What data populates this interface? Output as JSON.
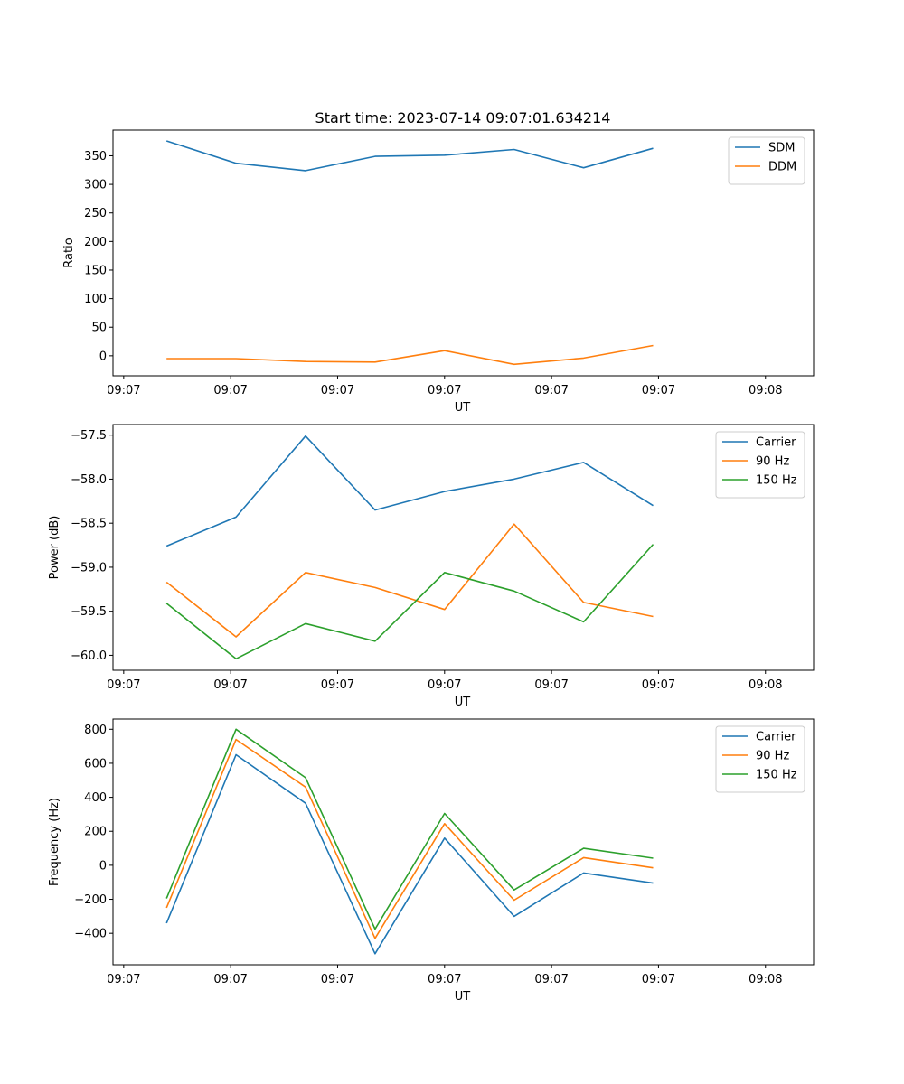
{
  "figure_title": "Start time: 2023-07-14 09:07:01.634214",
  "chart_data": [
    {
      "type": "line",
      "title": "Start time: 2023-07-14 09:07:01.634214",
      "xlabel": "UT",
      "ylabel": "Ratio",
      "x_tick_labels": [
        "09:07",
        "09:07",
        "09:07",
        "09:07",
        "09:07",
        "09:07",
        "09:08"
      ],
      "xlim": [
        -0.5,
        6.05
      ],
      "x": [
        0,
        0.65,
        1.3,
        1.95,
        2.6,
        3.25,
        3.9,
        4.55
      ],
      "ylim": [
        -35,
        395
      ],
      "yticks": [
        0,
        50,
        100,
        150,
        200,
        250,
        300,
        350
      ],
      "legend": "top-right",
      "series": [
        {
          "name": "SDM",
          "color": "#1f77b4",
          "values": [
            376,
            337,
            324,
            349,
            351,
            361,
            329,
            363
          ]
        },
        {
          "name": "DDM",
          "color": "#ff7f0e",
          "values": [
            -5,
            -5,
            -10,
            -11,
            9,
            -15,
            -4,
            18
          ]
        }
      ]
    },
    {
      "type": "line",
      "title": "",
      "xlabel": "UT",
      "ylabel": "Power (dB)",
      "x_tick_labels": [
        "09:07",
        "09:07",
        "09:07",
        "09:07",
        "09:07",
        "09:07",
        "09:08"
      ],
      "xlim": [
        -0.5,
        6.05
      ],
      "x": [
        0,
        0.65,
        1.3,
        1.95,
        2.6,
        3.25,
        3.9,
        4.55
      ],
      "ylim": [
        -60.17,
        -57.38
      ],
      "yticks": [
        -60.0,
        -59.5,
        -59.0,
        -58.5,
        -58.0,
        -57.5
      ],
      "ytick_labels": [
        "−60.0",
        "−59.5",
        "−59.0",
        "−58.5",
        "−58.0",
        "−57.5"
      ],
      "legend": "top-right",
      "series": [
        {
          "name": "Carrier",
          "color": "#1f77b4",
          "values": [
            -58.76,
            -58.43,
            -57.51,
            -58.35,
            -58.14,
            -58.0,
            -57.81,
            -58.3
          ]
        },
        {
          "name": "90 Hz",
          "color": "#ff7f0e",
          "values": [
            -59.17,
            -59.79,
            -59.06,
            -59.23,
            -59.48,
            -58.51,
            -59.4,
            -59.56
          ]
        },
        {
          "name": "150 Hz",
          "color": "#2ca02c",
          "values": [
            -59.41,
            -60.04,
            -59.64,
            -59.84,
            -59.06,
            -59.27,
            -59.62,
            -58.74
          ]
        }
      ]
    },
    {
      "type": "line",
      "title": "",
      "xlabel": "UT",
      "ylabel": "Frequency (Hz)",
      "x_tick_labels": [
        "09:07",
        "09:07",
        "09:07",
        "09:07",
        "09:07",
        "09:07",
        "09:08"
      ],
      "xlim": [
        -0.5,
        6.05
      ],
      "x": [
        0,
        0.65,
        1.3,
        1.95,
        2.6,
        3.25,
        3.9,
        4.55
      ],
      "ylim": [
        -585,
        860
      ],
      "yticks": [
        -400,
        -200,
        0,
        200,
        400,
        600,
        800
      ],
      "ytick_labels": [
        "−400",
        "−200",
        "0",
        "200",
        "400",
        "600",
        "800"
      ],
      "legend": "top-right",
      "series": [
        {
          "name": "Carrier",
          "color": "#1f77b4",
          "values": [
            -340,
            650,
            365,
            -520,
            160,
            -300,
            -45,
            -105
          ]
        },
        {
          "name": "90 Hz",
          "color": "#ff7f0e",
          "values": [
            -250,
            740,
            460,
            -430,
            245,
            -205,
            45,
            -15
          ]
        },
        {
          "name": "150 Hz",
          "color": "#2ca02c",
          "values": [
            -195,
            800,
            515,
            -375,
            305,
            -145,
            100,
            42
          ]
        }
      ]
    }
  ]
}
